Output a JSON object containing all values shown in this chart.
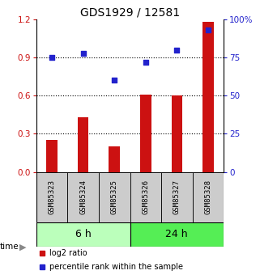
{
  "title": "GDS1929 / 12581",
  "categories": [
    "GSM85323",
    "GSM85324",
    "GSM85325",
    "GSM85326",
    "GSM85327",
    "GSM85328"
  ],
  "log2_ratio": [
    0.25,
    0.43,
    0.2,
    0.61,
    0.6,
    1.18
  ],
  "percentile_rank_pct": [
    75.0,
    78.0,
    60.0,
    72.0,
    80.0,
    93.0
  ],
  "bar_color": "#cc1111",
  "dot_color": "#2222cc",
  "left_ylim": [
    0,
    1.2
  ],
  "right_ylim": [
    0,
    100
  ],
  "left_yticks": [
    0,
    0.3,
    0.6,
    0.9,
    1.2
  ],
  "right_yticks": [
    0,
    25,
    50,
    75,
    100
  ],
  "right_yticklabels": [
    "0",
    "25",
    "50",
    "75",
    "100%"
  ],
  "group1_label": "6 h",
  "group2_label": "24 h",
  "group1_color": "#bbffbb",
  "group2_color": "#55ee55",
  "sample_box_color": "#cccccc",
  "legend_label1": "log2 ratio",
  "legend_label2": "percentile rank within the sample",
  "title_fontsize": 10,
  "tick_fontsize": 7.5,
  "label_fontsize": 6.5,
  "group_fontsize": 9,
  "legend_fontsize": 7
}
